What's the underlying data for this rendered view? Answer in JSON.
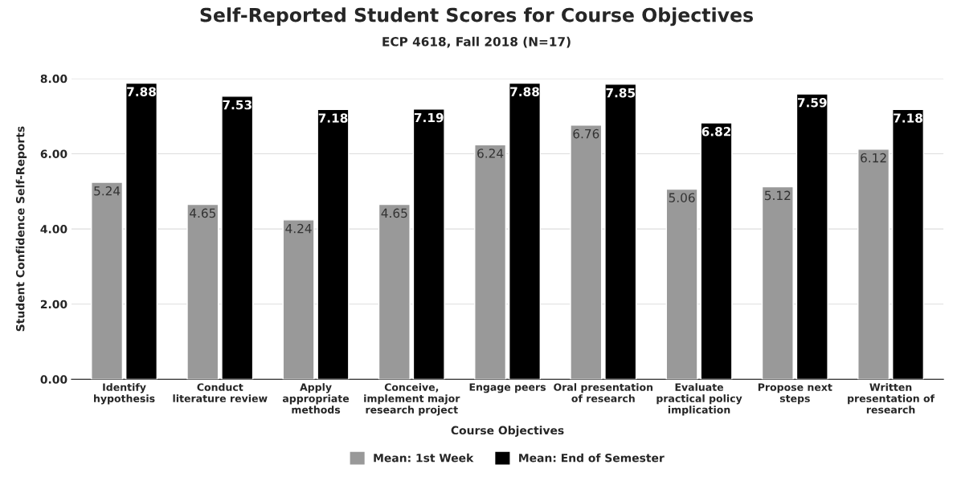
{
  "chart_data": {
    "type": "bar",
    "title": "Self-Reported Student Scores for Course Objectives",
    "subtitle": "ECP 4618, Fall 2018 (N=17)",
    "xlabel": "Course Objectives",
    "ylabel": "Student Confidence Self-Reports",
    "categories": [
      "Identify\nhypothesis",
      "Conduct\nliterature review",
      "Apply\nappropriate\nmethods",
      "Conceive,\nimplement major\nresearch project",
      "Engage peers",
      "Oral presentation\nof research",
      "Evaluate\npractical policy\nimplication",
      "Propose next\nsteps",
      "Written\npresentation of\nresearch"
    ],
    "series": [
      {
        "name": "Mean: 1st Week",
        "color": "#999999",
        "values": [
          5.24,
          4.65,
          4.24,
          4.65,
          6.24,
          6.76,
          5.06,
          5.12,
          6.12
        ]
      },
      {
        "name": "Mean: End of Semester",
        "color": "#000000",
        "values": [
          7.88,
          7.53,
          7.18,
          7.19,
          7.88,
          7.85,
          6.82,
          7.59,
          7.18
        ]
      }
    ],
    "ylim": [
      0,
      8
    ],
    "yticks": [
      {
        "value": 0,
        "label": "0.00"
      },
      {
        "value": 2,
        "label": "2.00"
      },
      {
        "value": 4,
        "label": "4.00"
      },
      {
        "value": 6,
        "label": "6.00"
      },
      {
        "value": 8,
        "label": "8.00"
      }
    ],
    "grid": "y",
    "legend": "bottom",
    "data_labels": true
  }
}
